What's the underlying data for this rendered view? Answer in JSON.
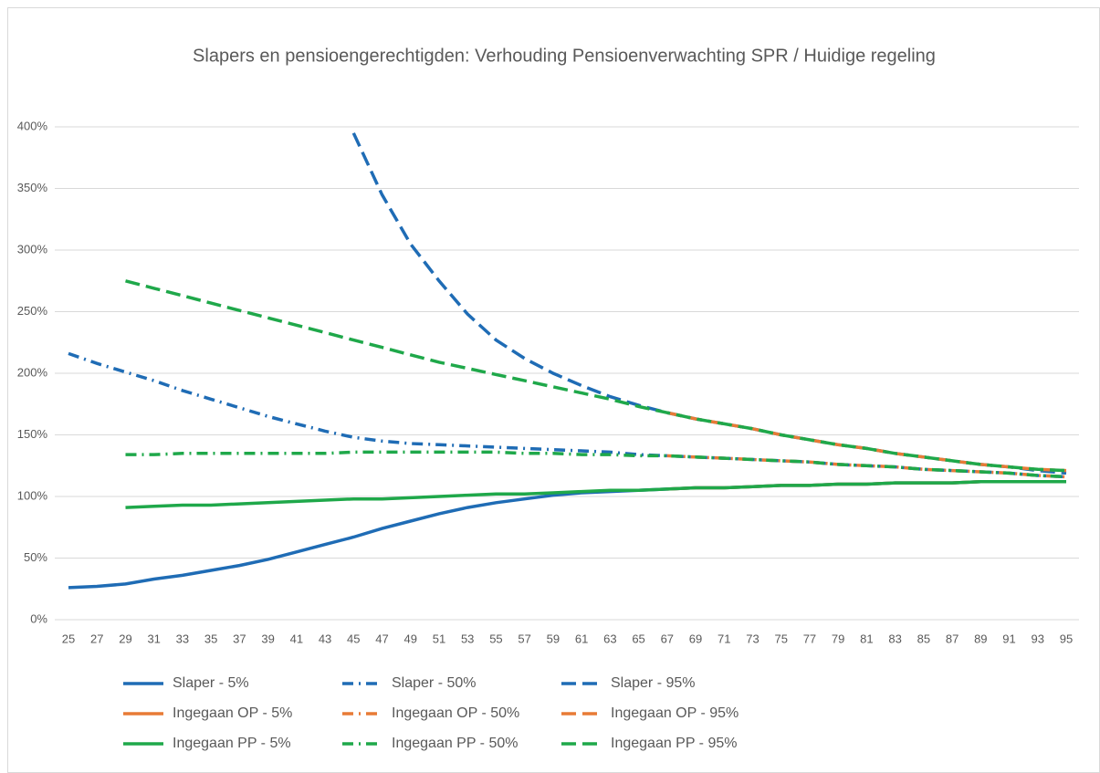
{
  "chart_data": {
    "type": "line",
    "title": "Slapers en pensioengerechtigden: Verhouding Pensioenverwachting SPR / Huidige regeling",
    "x": [
      25,
      27,
      29,
      31,
      33,
      35,
      37,
      39,
      41,
      43,
      45,
      47,
      49,
      51,
      53,
      55,
      57,
      59,
      61,
      63,
      65,
      67,
      69,
      71,
      73,
      75,
      77,
      79,
      81,
      83,
      85,
      87,
      89,
      91,
      93,
      95
    ],
    "xlim": [
      25,
      95
    ],
    "xticks": [
      25,
      27,
      29,
      31,
      33,
      35,
      37,
      39,
      41,
      43,
      45,
      47,
      49,
      51,
      53,
      55,
      57,
      59,
      61,
      63,
      65,
      67,
      69,
      71,
      73,
      75,
      77,
      79,
      81,
      83,
      85,
      87,
      89,
      91,
      93,
      95
    ],
    "ylim": [
      0,
      400
    ],
    "yticks": [
      {
        "value": 0,
        "label": "0%"
      },
      {
        "value": 50,
        "label": "50%"
      },
      {
        "value": 100,
        "label": "100%"
      },
      {
        "value": 150,
        "label": "150%"
      },
      {
        "value": 200,
        "label": "200%"
      },
      {
        "value": 250,
        "label": "250%"
      },
      {
        "value": 300,
        "label": "300%"
      },
      {
        "value": 350,
        "label": "350%"
      },
      {
        "value": 400,
        "label": "400%"
      }
    ],
    "grid": true,
    "legend": "bottom",
    "series": [
      {
        "name": "Slaper - 5%",
        "color": "#1f6cb5",
        "values": [
          26,
          27,
          29,
          33,
          36,
          40,
          44,
          49,
          55,
          61,
          67,
          74,
          80,
          86,
          91,
          95,
          98,
          101,
          103,
          104,
          105,
          106,
          107,
          107,
          108,
          109,
          109,
          110,
          110,
          111,
          111,
          111,
          112,
          112,
          112,
          112
        ]
      },
      {
        "name": "Slaper - 50%",
        "color": "#1f6cb5",
        "values": [
          216,
          208,
          201,
          194,
          186,
          179,
          172,
          165,
          159,
          153,
          148,
          145,
          143,
          142,
          141,
          140,
          139,
          138,
          137,
          136,
          134,
          133,
          132,
          131,
          130,
          129,
          128,
          126,
          125,
          124,
          122,
          121,
          120,
          119,
          117,
          116
        ]
      },
      {
        "name": "Slaper - 95%",
        "color": "#1f6cb5",
        "values": [
          null,
          null,
          null,
          null,
          null,
          null,
          null,
          null,
          null,
          null,
          395,
          345,
          305,
          275,
          248,
          227,
          212,
          200,
          190,
          181,
          174,
          168,
          163,
          159,
          155,
          150,
          146,
          142,
          139,
          135,
          132,
          129,
          126,
          124,
          121,
          119
        ]
      },
      {
        "name": "Ingegaan OP - 5%",
        "color": "#e87b36",
        "values": [
          null,
          null,
          null,
          null,
          null,
          null,
          null,
          null,
          null,
          null,
          null,
          null,
          null,
          null,
          null,
          null,
          null,
          null,
          null,
          null,
          null,
          106,
          107,
          107,
          108,
          109,
          109,
          110,
          110,
          111,
          111,
          111,
          112,
          112,
          112,
          112
        ]
      },
      {
        "name": "Ingegaan OP - 50%",
        "color": "#e87b36",
        "values": [
          null,
          null,
          null,
          null,
          null,
          null,
          null,
          null,
          null,
          null,
          null,
          null,
          null,
          null,
          null,
          null,
          null,
          null,
          null,
          null,
          null,
          133,
          132,
          131,
          130,
          129,
          128,
          126,
          125,
          124,
          122,
          121,
          120,
          119,
          117,
          116
        ]
      },
      {
        "name": "Ingegaan OP - 95%",
        "color": "#e87b36",
        "values": [
          null,
          null,
          null,
          null,
          null,
          null,
          null,
          null,
          null,
          null,
          null,
          null,
          null,
          null,
          null,
          null,
          null,
          null,
          null,
          null,
          null,
          168,
          163,
          159,
          155,
          150,
          146,
          142,
          139,
          135,
          132,
          129,
          126,
          124,
          122,
          121
        ]
      },
      {
        "name": "Ingegaan PP - 5%",
        "color": "#1fa84a",
        "values": [
          null,
          null,
          91,
          92,
          93,
          93,
          94,
          95,
          96,
          97,
          98,
          98,
          99,
          100,
          101,
          102,
          102,
          103,
          104,
          105,
          105,
          106,
          107,
          107,
          108,
          109,
          109,
          110,
          110,
          111,
          111,
          111,
          112,
          112,
          112,
          112
        ]
      },
      {
        "name": "Ingegaan PP - 50%",
        "color": "#1fa84a",
        "values": [
          null,
          null,
          134,
          134,
          135,
          135,
          135,
          135,
          135,
          135,
          136,
          136,
          136,
          136,
          136,
          136,
          135,
          135,
          134,
          134,
          133,
          133,
          132,
          131,
          130,
          129,
          128,
          126,
          125,
          124,
          122,
          121,
          120,
          119,
          117,
          116
        ]
      },
      {
        "name": "Ingegaan PP - 95%",
        "color": "#1fa84a",
        "values": [
          null,
          null,
          275,
          269,
          263,
          257,
          251,
          245,
          239,
          233,
          227,
          221,
          215,
          209,
          204,
          199,
          194,
          189,
          184,
          179,
          173,
          168,
          163,
          159,
          155,
          150,
          146,
          142,
          139,
          135,
          132,
          129,
          126,
          124,
          122,
          121
        ]
      }
    ]
  }
}
